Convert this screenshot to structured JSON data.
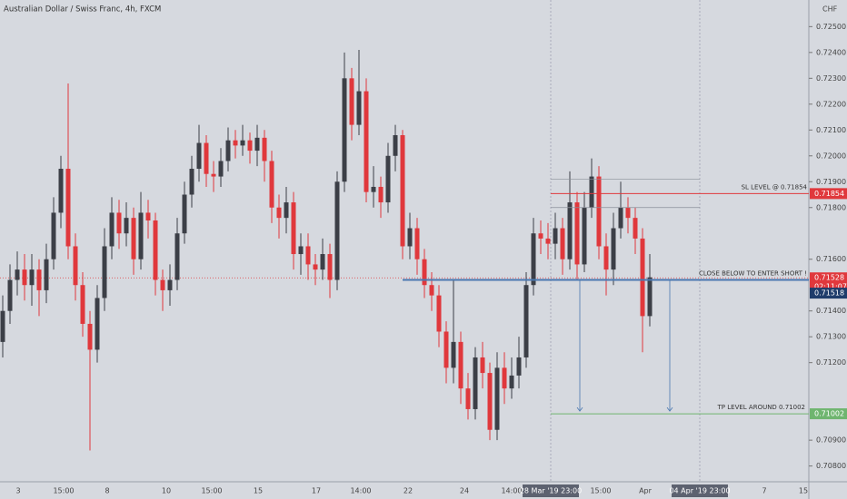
{
  "chart_data": {
    "type": "candlestick",
    "title": "Australian Dollar / Swiss Franc, 4h, FXCM",
    "currency": "CHF",
    "x_labels": [
      "3",
      "15:00",
      "8",
      "10",
      "15:00",
      "15",
      "17",
      "14:00",
      "22",
      "24",
      "14:00",
      "28 Mar '19  23:00",
      "15:00",
      "Apr",
      "04 Apr '19  23:00",
      "7",
      "15"
    ],
    "open": [
      0.7128,
      0.714,
      0.7152,
      0.7156,
      0.715,
      0.7156,
      0.7148,
      0.716,
      0.7178,
      0.7195,
      0.7165,
      0.715,
      0.7135,
      0.7125,
      0.7145,
      0.7165,
      0.7178,
      0.717,
      0.7176,
      0.716,
      0.7178,
      0.7175,
      0.7152,
      0.7148,
      0.7152,
      0.717,
      0.7185,
      0.7195,
      0.7205,
      0.7193,
      0.7192,
      0.7198,
      0.7206,
      0.7204,
      0.7206,
      0.7202,
      0.7207,
      0.7198,
      0.718,
      0.7176,
      0.7182,
      0.7162,
      0.7165,
      0.7158,
      0.7156,
      0.7162,
      0.7152,
      0.719,
      0.723,
      0.7212,
      0.7225,
      0.7186,
      0.7188,
      0.7182,
      0.72,
      0.7208,
      0.7165,
      0.7172,
      0.716,
      0.715,
      0.7146,
      0.7132,
      0.7118,
      0.7128,
      0.711,
      0.7102,
      0.7122,
      0.7116,
      0.7094,
      0.7118,
      0.711,
      0.7115,
      0.7122,
      0.715,
      0.717,
      0.7168,
      0.7166,
      0.7172,
      0.716,
      0.7182,
      0.7158,
      0.718,
      0.7192,
      0.7165,
      0.7156,
      0.7172,
      0.718,
      0.7176,
      0.7168,
      0.7138
    ],
    "high": [
      0.7146,
      0.7158,
      0.7163,
      0.7162,
      0.7162,
      0.716,
      0.7166,
      0.7184,
      0.72,
      0.7228,
      0.717,
      0.7155,
      0.714,
      0.715,
      0.7172,
      0.7184,
      0.7183,
      0.7182,
      0.718,
      0.7186,
      0.7183,
      0.7178,
      0.7156,
      0.7158,
      0.7176,
      0.719,
      0.72,
      0.7212,
      0.7208,
      0.7198,
      0.7203,
      0.7211,
      0.721,
      0.7212,
      0.7209,
      0.7212,
      0.721,
      0.7202,
      0.7185,
      0.7188,
      0.7186,
      0.717,
      0.717,
      0.7162,
      0.7168,
      0.7166,
      0.7194,
      0.724,
      0.7234,
      0.7241,
      0.723,
      0.7196,
      0.7192,
      0.7205,
      0.7212,
      0.721,
      0.7178,
      0.7176,
      0.7164,
      0.7155,
      0.715,
      0.7136,
      0.7152,
      0.7132,
      0.7116,
      0.7126,
      0.7128,
      0.712,
      0.7124,
      0.7124,
      0.7122,
      0.713,
      0.7155,
      0.7176,
      0.7175,
      0.7174,
      0.7178,
      0.7176,
      0.7194,
      0.7186,
      0.7186,
      0.7199,
      0.7196,
      0.717,
      0.7178,
      0.719,
      0.7184,
      0.718,
      0.7172,
      0.7162
    ],
    "low": [
      0.7122,
      0.7135,
      0.7146,
      0.7144,
      0.7142,
      0.7138,
      0.7143,
      0.7156,
      0.7172,
      0.716,
      0.7144,
      0.713,
      0.7086,
      0.712,
      0.714,
      0.716,
      0.7164,
      0.7165,
      0.7154,
      0.7156,
      0.7168,
      0.7146,
      0.714,
      0.7142,
      0.7148,
      0.7166,
      0.718,
      0.719,
      0.7188,
      0.7186,
      0.7188,
      0.7194,
      0.7199,
      0.72,
      0.7197,
      0.7196,
      0.719,
      0.7174,
      0.7168,
      0.717,
      0.7156,
      0.7154,
      0.7152,
      0.715,
      0.7152,
      0.7145,
      0.7148,
      0.7186,
      0.7206,
      0.7208,
      0.7182,
      0.718,
      0.7176,
      0.7178,
      0.7194,
      0.716,
      0.716,
      0.7154,
      0.7145,
      0.714,
      0.7126,
      0.7112,
      0.7112,
      0.7104,
      0.7098,
      0.7098,
      0.711,
      0.709,
      0.709,
      0.7104,
      0.7106,
      0.711,
      0.7118,
      0.7146,
      0.7162,
      0.716,
      0.716,
      0.7154,
      0.7156,
      0.7152,
      0.7155,
      0.7176,
      0.716,
      0.7146,
      0.715,
      0.7168,
      0.717,
      0.7162,
      0.7124,
      0.7134
    ],
    "close": [
      0.714,
      0.7152,
      0.7156,
      0.715,
      0.7156,
      0.7148,
      0.716,
      0.7178,
      0.7195,
      0.7165,
      0.715,
      0.7135,
      0.7125,
      0.7145,
      0.7165,
      0.7178,
      0.717,
      0.7176,
      0.716,
      0.7178,
      0.7175,
      0.7152,
      0.7148,
      0.7152,
      0.717,
      0.7185,
      0.7195,
      0.7205,
      0.7193,
      0.7192,
      0.7198,
      0.7206,
      0.7204,
      0.7206,
      0.7202,
      0.7207,
      0.7198,
      0.718,
      0.7176,
      0.7182,
      0.7162,
      0.7165,
      0.7158,
      0.7156,
      0.7162,
      0.7152,
      0.719,
      0.723,
      0.7212,
      0.7225,
      0.7186,
      0.7188,
      0.7182,
      0.72,
      0.7208,
      0.7165,
      0.7172,
      0.716,
      0.715,
      0.7146,
      0.7132,
      0.7118,
      0.7128,
      0.711,
      0.7102,
      0.7122,
      0.7116,
      0.7094,
      0.7118,
      0.711,
      0.7115,
      0.7122,
      0.715,
      0.717,
      0.7168,
      0.7166,
      0.7172,
      0.716,
      0.7182,
      0.7158,
      0.718,
      0.7192,
      0.7165,
      0.7156,
      0.7172,
      0.718,
      0.7176,
      0.7168,
      0.7138,
      0.7153
    ],
    "up_color": "#3c3f47",
    "down_color": "#e0383c",
    "ylim": [
      0.70739,
      0.72603
    ],
    "yticks": [
      {
        "value": 0.725,
        "label": "0.72500"
      },
      {
        "value": 0.724,
        "label": "0.72400"
      },
      {
        "value": 0.723,
        "label": "0.72300"
      },
      {
        "value": 0.722,
        "label": "0.72200"
      },
      {
        "value": 0.721,
        "label": "0.72100"
      },
      {
        "value": 0.72,
        "label": "0.72000"
      },
      {
        "value": 0.719,
        "label": "0.71900"
      },
      {
        "value": 0.718,
        "label": "0.71800"
      },
      {
        "value": 0.716,
        "label": "0.71600"
      },
      {
        "value": 0.714,
        "label": "0.71400"
      },
      {
        "value": 0.713,
        "label": "0.71300"
      },
      {
        "value": 0.712,
        "label": "0.71200"
      },
      {
        "value": 0.709,
        "label": "0.70900"
      },
      {
        "value": 0.708,
        "label": "0.70800"
      }
    ],
    "levels": {
      "sl": {
        "value": 0.71854,
        "label": "0.71854",
        "text": "SL LEVEL @ 0.71854",
        "color": "#e0383c"
      },
      "entry": {
        "value": 0.7152,
        "text": "CLOSE BELOW TO ENTER SHORT !",
        "color": "#4a78b0"
      },
      "tp": {
        "value": 0.71002,
        "label": "0.71002",
        "text": "TP LEVEL AROUND 0.71002",
        "color": "#6fb56f"
      },
      "zone_top": {
        "value": 0.7191
      },
      "zone_bottom": {
        "value": 0.718
      },
      "last": {
        "value": 0.71528,
        "label": "0.71528",
        "countdown": "02:11:07",
        "color": "#e0383c"
      },
      "bid": {
        "value": 0.71518,
        "label": "0.71518",
        "color": "#1f3d6b"
      }
    }
  }
}
